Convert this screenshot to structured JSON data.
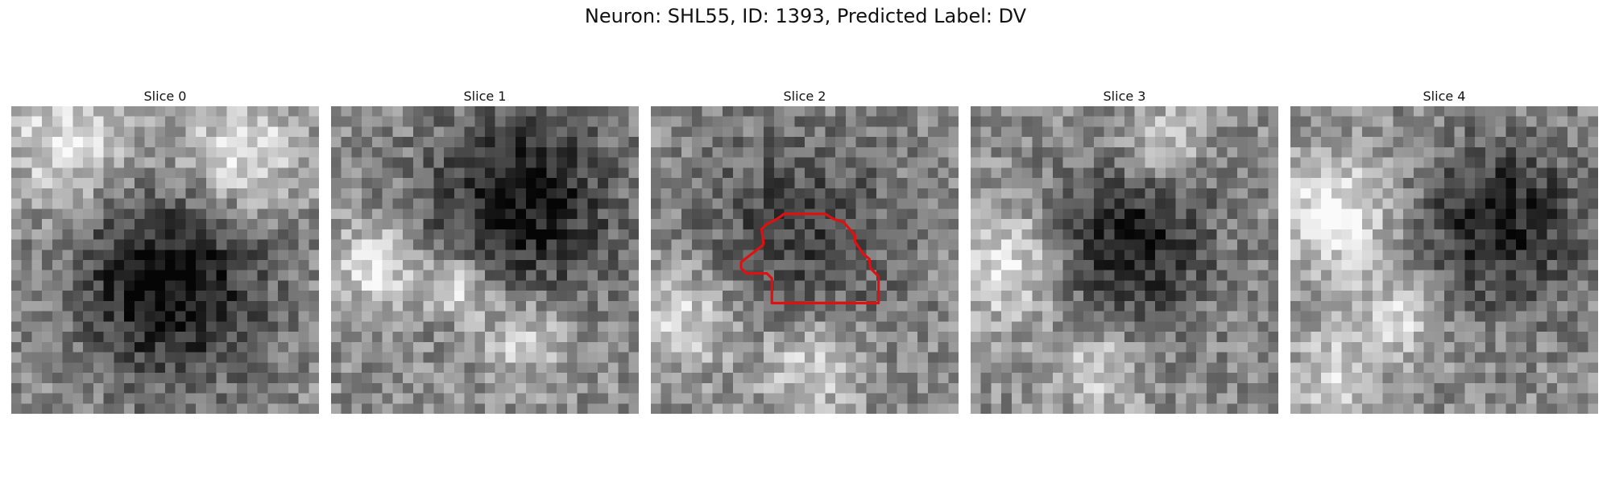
{
  "figure": {
    "title": "Neuron: SHL55, ID: 1393, Predicted Label: DV"
  },
  "panels": [
    {
      "label": "Slice 0",
      "seed": 11,
      "dark_blob": "center-lower"
    },
    {
      "label": "Slice 1",
      "seed": 27,
      "dark_blob": "upper-right band"
    },
    {
      "label": "Slice 2",
      "seed": 43,
      "dark_blob": "diffuse center",
      "outlined": true
    },
    {
      "label": "Slice 3",
      "seed": 59,
      "dark_blob": "center"
    },
    {
      "label": "Slice 4",
      "seed": 71,
      "dark_blob": "right"
    }
  ],
  "style": {
    "outline_color": "#e01010",
    "colormap": "gray"
  }
}
